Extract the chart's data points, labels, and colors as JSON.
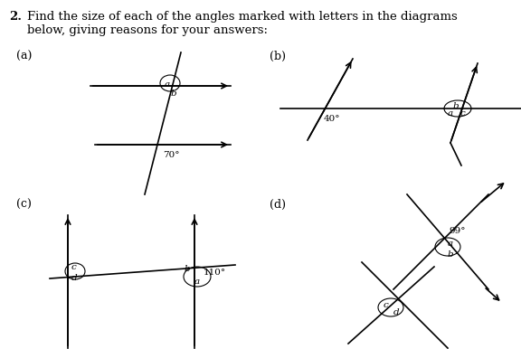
{
  "title_number": "2.",
  "title_text": "Find the size of each of the angles marked with letters in the diagrams\nbelow, giving reasons for your answers:",
  "subtitle_a": "(a)",
  "subtitle_b": "(b)",
  "subtitle_c": "(c)",
  "subtitle_d": "(d)",
  "bg_color": "#ffffff",
  "text_color": "#000000",
  "angle_70": "70°",
  "angle_40": "40°",
  "angle_110": "110°",
  "angle_99": "99°"
}
